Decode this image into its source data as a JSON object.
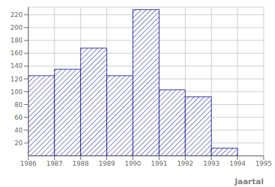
{
  "chart_data": {
    "type": "histogram",
    "bins": [
      1986,
      1987,
      1988,
      1989,
      1990,
      1991,
      1992,
      1993,
      1994,
      1995
    ],
    "values": [
      125,
      135,
      168,
      125,
      228,
      103,
      92,
      12,
      0
    ],
    "x_label": "Jaartal",
    "xlim": [
      1986,
      1995
    ],
    "xticks": [
      1986,
      1987,
      1988,
      1989,
      1990,
      1991,
      1992,
      1993,
      1994,
      1995
    ],
    "ylim": [
      0,
      232
    ],
    "yticks": [
      20,
      40,
      60,
      80,
      100,
      120,
      140,
      160,
      180,
      200,
      220
    ],
    "color": "#00008b",
    "grid": true
  }
}
